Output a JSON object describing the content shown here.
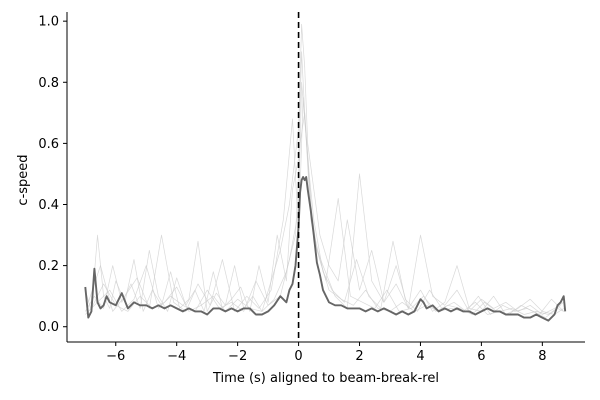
{
  "chart_data": {
    "type": "line",
    "title": "",
    "xlabel": "Time (s) aligned to beam-break-rel",
    "ylabel": "c-speed",
    "xlim": [
      -7.6,
      9.4
    ],
    "ylim": [
      -0.05,
      1.03
    ],
    "xticks": [
      -6,
      -4,
      -2,
      0,
      2,
      4,
      6,
      8
    ],
    "xtick_labels": [
      "−6",
      "−4",
      "−2",
      "0",
      "2",
      "4",
      "6",
      "8"
    ],
    "yticks": [
      0.0,
      0.2,
      0.4,
      0.6,
      0.8,
      1.0
    ],
    "ytick_labels": [
      "0.0",
      "0.2",
      "0.4",
      "0.6",
      "0.8",
      "1.0"
    ],
    "grid": false,
    "legend": "none",
    "annotations": [
      {
        "type": "vertical-dashed-line",
        "x": 0,
        "color": "#000000"
      }
    ],
    "series": [
      {
        "role": "mean",
        "color": "#666666",
        "x": [
          -7.0,
          -6.9,
          -6.8,
          -6.7,
          -6.6,
          -6.5,
          -6.4,
          -6.3,
          -6.2,
          -6.0,
          -5.8,
          -5.6,
          -5.4,
          -5.2,
          -5.0,
          -4.8,
          -4.6,
          -4.4,
          -4.2,
          -4.0,
          -3.8,
          -3.6,
          -3.4,
          -3.2,
          -3.0,
          -2.8,
          -2.6,
          -2.4,
          -2.2,
          -2.0,
          -1.8,
          -1.6,
          -1.4,
          -1.2,
          -1.0,
          -0.8,
          -0.6,
          -0.4,
          -0.3,
          -0.2,
          -0.1,
          0.0,
          0.05,
          0.1,
          0.15,
          0.2,
          0.25,
          0.3,
          0.4,
          0.5,
          0.6,
          0.7,
          0.8,
          1.0,
          1.2,
          1.4,
          1.6,
          1.8,
          2.0,
          2.2,
          2.4,
          2.6,
          2.8,
          3.0,
          3.2,
          3.4,
          3.6,
          3.8,
          4.0,
          4.1,
          4.2,
          4.4,
          4.6,
          4.8,
          5.0,
          5.2,
          5.4,
          5.6,
          5.8,
          6.0,
          6.2,
          6.4,
          6.6,
          6.8,
          7.0,
          7.2,
          7.4,
          7.6,
          7.8,
          8.0,
          8.2,
          8.4,
          8.5,
          8.6,
          8.7,
          8.75
        ],
        "values": [
          0.13,
          0.03,
          0.05,
          0.19,
          0.08,
          0.06,
          0.07,
          0.1,
          0.08,
          0.07,
          0.11,
          0.06,
          0.08,
          0.07,
          0.07,
          0.06,
          0.07,
          0.06,
          0.07,
          0.06,
          0.05,
          0.06,
          0.05,
          0.05,
          0.04,
          0.06,
          0.06,
          0.05,
          0.06,
          0.05,
          0.06,
          0.06,
          0.04,
          0.04,
          0.05,
          0.07,
          0.1,
          0.08,
          0.12,
          0.14,
          0.2,
          0.33,
          0.44,
          0.48,
          0.49,
          0.48,
          0.49,
          0.45,
          0.38,
          0.3,
          0.21,
          0.17,
          0.12,
          0.08,
          0.07,
          0.07,
          0.06,
          0.06,
          0.06,
          0.05,
          0.06,
          0.05,
          0.06,
          0.05,
          0.04,
          0.05,
          0.04,
          0.05,
          0.09,
          0.08,
          0.06,
          0.07,
          0.05,
          0.06,
          0.05,
          0.06,
          0.05,
          0.05,
          0.04,
          0.05,
          0.06,
          0.05,
          0.05,
          0.04,
          0.04,
          0.04,
          0.03,
          0.03,
          0.04,
          0.03,
          0.02,
          0.04,
          0.07,
          0.08,
          0.1,
          0.05
        ]
      },
      {
        "role": "trial",
        "color": "#cccccc",
        "x": [
          -7.0,
          -6.8,
          -6.6,
          -6.4,
          -6.2,
          -6.0,
          -5.7,
          -5.4,
          -5.1,
          -4.8,
          -4.5,
          -4.2,
          -3.9,
          -3.6,
          -3.3,
          -3.0,
          -2.7,
          -2.4,
          -2.1,
          -1.8,
          -1.5,
          -1.2,
          -0.9,
          -0.6,
          -0.3,
          0.0,
          0.1,
          0.2,
          0.3,
          0.5,
          0.7,
          1.0,
          1.3,
          1.6,
          2.0,
          2.4,
          2.8,
          3.2,
          3.6,
          4.0,
          4.4,
          4.8,
          5.2,
          5.6,
          6.0,
          6.4,
          6.8,
          7.2,
          7.6,
          8.0,
          8.4,
          8.7
        ],
        "values": [
          0.12,
          0.05,
          0.3,
          0.1,
          0.06,
          0.15,
          0.08,
          0.22,
          0.05,
          0.12,
          0.07,
          0.18,
          0.06,
          0.09,
          0.28,
          0.05,
          0.11,
          0.07,
          0.2,
          0.06,
          0.1,
          0.05,
          0.15,
          0.25,
          0.4,
          0.65,
          0.99,
          0.85,
          0.6,
          0.45,
          0.3,
          0.2,
          0.15,
          0.35,
          0.12,
          0.25,
          0.08,
          0.14,
          0.06,
          0.3,
          0.1,
          0.07,
          0.12,
          0.05,
          0.09,
          0.06,
          0.08,
          0.05,
          0.07,
          0.04,
          0.06,
          0.08
        ]
      },
      {
        "role": "trial",
        "color": "#cccccc",
        "x": [
          -7.0,
          -6.7,
          -6.4,
          -6.1,
          -5.8,
          -5.5,
          -5.2,
          -4.9,
          -4.6,
          -4.3,
          -4.0,
          -3.7,
          -3.4,
          -3.1,
          -2.8,
          -2.5,
          -2.2,
          -1.9,
          -1.6,
          -1.3,
          -1.0,
          -0.7,
          -0.4,
          -0.2,
          0.0,
          0.1,
          0.2,
          0.35,
          0.5,
          0.8,
          1.1,
          1.5,
          1.9,
          2.3,
          2.7,
          3.1,
          3.5,
          3.9,
          4.3,
          4.7,
          5.1,
          5.5,
          5.9,
          6.3,
          6.7,
          7.1,
          7.5,
          7.9,
          8.3,
          8.7
        ],
        "values": [
          0.05,
          0.1,
          0.06,
          0.2,
          0.08,
          0.14,
          0.06,
          0.25,
          0.1,
          0.05,
          0.16,
          0.07,
          0.12,
          0.05,
          0.18,
          0.06,
          0.09,
          0.13,
          0.05,
          0.2,
          0.08,
          0.3,
          0.15,
          0.45,
          0.55,
          0.9,
          0.7,
          0.5,
          0.35,
          0.18,
          0.12,
          0.08,
          0.22,
          0.1,
          0.06,
          0.28,
          0.09,
          0.05,
          0.12,
          0.06,
          0.08,
          0.05,
          0.1,
          0.04,
          0.07,
          0.05,
          0.06,
          0.04,
          0.09,
          0.05
        ]
      },
      {
        "role": "trial",
        "color": "#cccccc",
        "x": [
          -6.9,
          -6.5,
          -6.1,
          -5.7,
          -5.3,
          -4.9,
          -4.5,
          -4.1,
          -3.7,
          -3.3,
          -2.9,
          -2.5,
          -2.1,
          -1.7,
          -1.3,
          -0.9,
          -0.5,
          -0.2,
          0.0,
          0.15,
          0.3,
          0.5,
          0.8,
          1.2,
          1.6,
          2.0,
          2.4,
          2.8,
          3.2,
          3.6,
          4.0,
          4.4,
          4.8,
          5.2,
          5.6,
          6.0,
          6.4,
          6.8,
          7.2,
          7.6,
          8.0,
          8.4,
          8.7
        ],
        "values": [
          0.08,
          0.2,
          0.05,
          0.1,
          0.16,
          0.06,
          0.3,
          0.08,
          0.05,
          0.14,
          0.07,
          0.22,
          0.05,
          0.1,
          0.06,
          0.12,
          0.35,
          0.68,
          0.3,
          0.75,
          0.55,
          0.28,
          0.2,
          0.1,
          0.06,
          0.5,
          0.15,
          0.08,
          0.2,
          0.06,
          0.12,
          0.05,
          0.08,
          0.2,
          0.06,
          0.05,
          0.1,
          0.04,
          0.06,
          0.09,
          0.05,
          0.04,
          0.06
        ]
      },
      {
        "role": "trial",
        "color": "#cccccc",
        "x": [
          -7.0,
          -6.6,
          -6.2,
          -5.8,
          -5.4,
          -5.0,
          -4.6,
          -4.2,
          -3.8,
          -3.4,
          -3.0,
          -2.6,
          -2.2,
          -1.8,
          -1.4,
          -1.0,
          -0.6,
          -0.3,
          0.0,
          0.1,
          0.25,
          0.4,
          0.6,
          0.9,
          1.3,
          1.7,
          2.1,
          2.5,
          2.9,
          3.3,
          3.7,
          4.1,
          4.5,
          4.9,
          5.3,
          5.7,
          6.1,
          6.5,
          6.9,
          7.3,
          7.7,
          8.1,
          8.5,
          8.7
        ],
        "values": [
          0.04,
          0.08,
          0.12,
          0.05,
          0.09,
          0.2,
          0.06,
          0.1,
          0.07,
          0.05,
          0.12,
          0.06,
          0.08,
          0.05,
          0.15,
          0.07,
          0.1,
          0.22,
          0.38,
          0.8,
          0.62,
          0.4,
          0.25,
          0.15,
          0.42,
          0.1,
          0.08,
          0.06,
          0.12,
          0.05,
          0.06,
          0.1,
          0.05,
          0.07,
          0.06,
          0.04,
          0.08,
          0.05,
          0.04,
          0.07,
          0.05,
          0.03,
          0.06,
          0.05
        ]
      },
      {
        "role": "trial",
        "color": "#cccccc",
        "x": [
          -6.8,
          -6.4,
          -6.0,
          -5.6,
          -5.2,
          -4.8,
          -4.4,
          -4.0,
          -3.6,
          -3.2,
          -2.8,
          -2.4,
          -2.0,
          -1.6,
          -1.2,
          -0.8,
          -0.4,
          -0.1,
          0.05,
          0.2,
          0.4,
          0.7,
          1.0,
          1.4,
          1.8,
          2.2,
          2.6,
          3.0,
          3.4,
          3.8,
          4.2,
          4.6,
          5.0,
          5.4,
          5.8,
          6.2,
          6.6,
          7.0,
          7.4,
          7.8,
          8.2,
          8.6
        ],
        "values": [
          0.06,
          0.14,
          0.07,
          0.05,
          0.1,
          0.06,
          0.08,
          0.13,
          0.05,
          0.07,
          0.1,
          0.05,
          0.09,
          0.06,
          0.05,
          0.09,
          0.18,
          0.3,
          0.6,
          0.7,
          0.35,
          0.22,
          0.12,
          0.09,
          0.07,
          0.12,
          0.06,
          0.05,
          0.08,
          0.05,
          0.07,
          0.05,
          0.06,
          0.05,
          0.08,
          0.04,
          0.05,
          0.06,
          0.04,
          0.05,
          0.04,
          0.07
        ]
      }
    ]
  }
}
